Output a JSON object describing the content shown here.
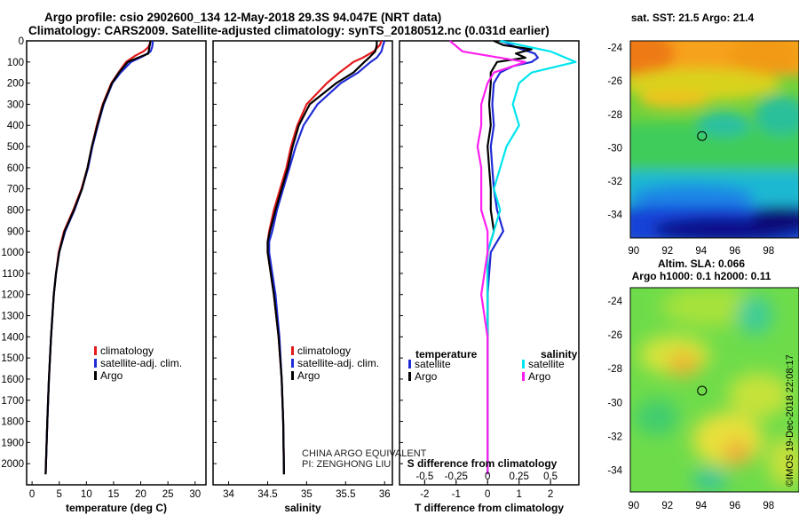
{
  "header": {
    "title_line1": "Argo profile: csio 2902600_134 12-May-2018 29.3S 94.047E (NRT data)",
    "title_line2": "Climatology: CARS2009. Satellite-adjusted climatology: synTS_20180512.nc (0.031d earlier)"
  },
  "colors": {
    "climatology": "#e31a1c",
    "satellite": "#1f2bd6",
    "argo": "#000000",
    "sal_satellite": "#00e5ee",
    "sal_argo": "#ff1ff0"
  },
  "chart_data": [
    {
      "type": "line",
      "name": "temperature-profile",
      "xlabel": "temperature (deg C)",
      "xlim": [
        -1,
        32
      ],
      "ylim": [
        2100,
        0
      ],
      "xticks": [
        0,
        5,
        10,
        15,
        20,
        25,
        30
      ],
      "yticks": [
        0,
        100,
        200,
        300,
        400,
        500,
        600,
        700,
        800,
        900,
        1000,
        1100,
        1200,
        1300,
        1400,
        1500,
        1600,
        1700,
        1800,
        1900,
        2000
      ],
      "legend": [
        "climatology",
        "satellite-adj. clim.",
        "Argo"
      ],
      "series": [
        {
          "name": "climatology",
          "color": "#e31a1c",
          "depth": [
            0,
            10,
            30,
            50,
            70,
            100,
            150,
            200,
            300,
            400,
            500,
            600,
            700,
            800,
            900,
            1000,
            1100,
            1200,
            1400,
            1600,
            1800,
            2050
          ],
          "values": [
            21.8,
            21.7,
            21.4,
            20.5,
            19.0,
            17.3,
            15.9,
            14.6,
            13.0,
            11.9,
            11.0,
            10.2,
            9.1,
            7.6,
            5.9,
            4.9,
            4.4,
            4.0,
            3.5,
            3.1,
            2.8,
            2.5
          ]
        },
        {
          "name": "satellite-adj. clim.",
          "color": "#1f2bd6",
          "depth": [
            0,
            10,
            30,
            50,
            70,
            100,
            150,
            200,
            300,
            400,
            500,
            600,
            700,
            800,
            900,
            1000,
            1100,
            1200,
            1400,
            1600,
            1800,
            2050
          ],
          "values": [
            22.2,
            22.2,
            22.1,
            21.8,
            20.6,
            18.2,
            16.3,
            14.8,
            13.2,
            12.1,
            11.1,
            10.3,
            9.2,
            7.8,
            6.1,
            5.0,
            4.4,
            4.0,
            3.5,
            3.1,
            2.8,
            2.5
          ]
        },
        {
          "name": "Argo",
          "color": "#000000",
          "depth": [
            0,
            30,
            60,
            80,
            100,
            150,
            200,
            300,
            400,
            500,
            600,
            700,
            800,
            900,
            1000,
            1100,
            1200,
            1400,
            1600,
            1800,
            2050
          ],
          "values": [
            21.8,
            21.6,
            21.4,
            19.5,
            17.6,
            16.0,
            14.7,
            13.1,
            12.0,
            11.0,
            10.2,
            9.2,
            7.7,
            6.0,
            5.0,
            4.4,
            4.0,
            3.5,
            3.1,
            2.8,
            2.5
          ]
        }
      ]
    },
    {
      "type": "line",
      "name": "salinity-profile",
      "xlabel": "salinity",
      "xlim": [
        33.8,
        36.1
      ],
      "ylim": [
        2100,
        0
      ],
      "xticks": [
        34,
        34.5,
        35,
        35.5,
        36
      ],
      "legend": [
        "climatology",
        "satellite-adj. clim.",
        "Argo"
      ],
      "annotation": [
        "CHINA ARGO EQUIVALENT",
        "PI: ZENGHONG LIU"
      ],
      "series": [
        {
          "name": "climatology",
          "color": "#e31a1c",
          "depth": [
            0,
            20,
            50,
            80,
            100,
            150,
            200,
            300,
            400,
            500,
            600,
            700,
            800,
            900,
            950,
            1000,
            1100,
            1200,
            1400,
            1600,
            1800,
            2050
          ],
          "values": [
            35.96,
            35.94,
            35.86,
            35.72,
            35.6,
            35.42,
            35.26,
            35.0,
            34.88,
            34.8,
            34.74,
            34.66,
            34.58,
            34.52,
            34.5,
            34.5,
            34.54,
            34.58,
            34.64,
            34.68,
            34.7,
            34.71
          ]
        },
        {
          "name": "satellite-adj. clim.",
          "color": "#1f2bd6",
          "depth": [
            0,
            20,
            50,
            80,
            100,
            150,
            200,
            300,
            400,
            500,
            600,
            700,
            800,
            900,
            950,
            1000,
            1100,
            1200,
            1400,
            1600,
            1800,
            2050
          ],
          "values": [
            36.0,
            35.98,
            35.96,
            35.9,
            35.82,
            35.66,
            35.44,
            35.14,
            34.96,
            34.86,
            34.78,
            34.7,
            34.62,
            34.56,
            34.52,
            34.52,
            34.56,
            34.6,
            34.65,
            34.68,
            34.7,
            34.71
          ]
        },
        {
          "name": "Argo",
          "color": "#000000",
          "depth": [
            0,
            20,
            50,
            80,
            100,
            150,
            200,
            300,
            400,
            500,
            600,
            700,
            800,
            900,
            950,
            1000,
            1100,
            1200,
            1400,
            1600,
            1800,
            2050
          ],
          "values": [
            35.9,
            35.9,
            35.88,
            35.8,
            35.74,
            35.6,
            35.38,
            35.04,
            34.9,
            34.82,
            34.76,
            34.68,
            34.6,
            34.53,
            34.5,
            34.5,
            34.54,
            34.58,
            34.64,
            34.68,
            34.7,
            34.71
          ]
        }
      ]
    },
    {
      "type": "line",
      "name": "difference-profile",
      "xlabel": "T difference from climatology",
      "xlabel_top": "S difference from climatology",
      "xlim": [
        -2.8,
        2.9
      ],
      "ylim": [
        2100,
        0
      ],
      "xticks": [
        -2,
        -1,
        0,
        1,
        2
      ],
      "xticks_top": [
        "-0.5",
        "-0.25",
        "0",
        "0.25",
        "0.5"
      ],
      "legend_left_title": "temperature",
      "legend_right_title": "salinity",
      "legend": [
        "satellite",
        "Argo",
        "satellite",
        "Argo"
      ],
      "series": [
        {
          "name": "T satellite",
          "color": "#1f2bd6",
          "depth": [
            0,
            10,
            30,
            50,
            60,
            80,
            100,
            120,
            150,
            200,
            300,
            400,
            500,
            600,
            700,
            800,
            900,
            1000,
            1200,
            1400,
            1600,
            1800,
            2050
          ],
          "values": [
            0.4,
            0.6,
            0.9,
            1.3,
            1.5,
            1.6,
            1.4,
            0.8,
            0.4,
            0.2,
            0.15,
            0.2,
            0.1,
            0.15,
            0.2,
            0.3,
            0.5,
            0.1,
            0,
            0,
            0,
            0,
            0
          ]
        },
        {
          "name": "T Argo",
          "color": "#000000",
          "depth": [
            0,
            20,
            40,
            60,
            80,
            100,
            150,
            200,
            300,
            400,
            500,
            600,
            700,
            800,
            900,
            1000,
            1200,
            1400,
            1600,
            1800,
            2050
          ],
          "values": [
            0.2,
            0.5,
            1.4,
            0.9,
            1.2,
            0.3,
            0.1,
            0.1,
            0.05,
            0.1,
            0.0,
            0.05,
            0.1,
            0.1,
            0.2,
            0.0,
            0.0,
            0.0,
            0.0,
            0.0,
            0.0
          ]
        },
        {
          "name": "S satellite",
          "color": "#00e5ee",
          "depth": [
            0,
            50,
            100,
            150,
            200,
            300,
            400,
            500,
            600,
            700,
            800,
            900,
            1000,
            1200,
            1400,
            1600,
            1800,
            2050
          ],
          "values": [
            0.1,
            0.5,
            0.7,
            0.35,
            0.25,
            0.2,
            0.25,
            0.15,
            0.1,
            0.05,
            0.1,
            0.05,
            0.0,
            0.0,
            0.0,
            0.0,
            0.0,
            0.0
          ]
        },
        {
          "name": "S Argo",
          "color": "#ff1ff0",
          "depth": [
            0,
            50,
            100,
            150,
            200,
            300,
            400,
            500,
            600,
            700,
            800,
            900,
            1000,
            1200,
            1400,
            1600,
            1800,
            2050
          ],
          "values": [
            -0.3,
            -0.2,
            0.3,
            0.05,
            0.0,
            -0.05,
            -0.05,
            -0.08,
            -0.05,
            -0.05,
            -0.05,
            0.0,
            0.0,
            -0.05,
            0.0,
            0.0,
            0.0,
            0.0
          ]
        }
      ]
    },
    {
      "type": "heatmap",
      "name": "sst-map",
      "title": "sat. SST: 21.5 Argo: 21.4",
      "xticks": [
        90,
        92,
        94,
        96,
        98
      ],
      "yticks": [
        -24,
        -26,
        -28,
        -30,
        -32,
        -34
      ],
      "marker": {
        "lon": 94.05,
        "lat": -29.3
      }
    },
    {
      "type": "heatmap",
      "name": "sla-map",
      "title_line1": "Altim. SLA: 0.066",
      "title_line2": "Argo h1000: 0.1 h2000: 0.11",
      "xticks": [
        90,
        92,
        94,
        96,
        98
      ],
      "yticks": [
        -24,
        -26,
        -28,
        -30,
        -32,
        -34
      ],
      "marker": {
        "lon": 94.05,
        "lat": -29.3
      }
    }
  ],
  "footer": {
    "credit": "©IMOS 19-Dec-2018 22:08:17"
  }
}
